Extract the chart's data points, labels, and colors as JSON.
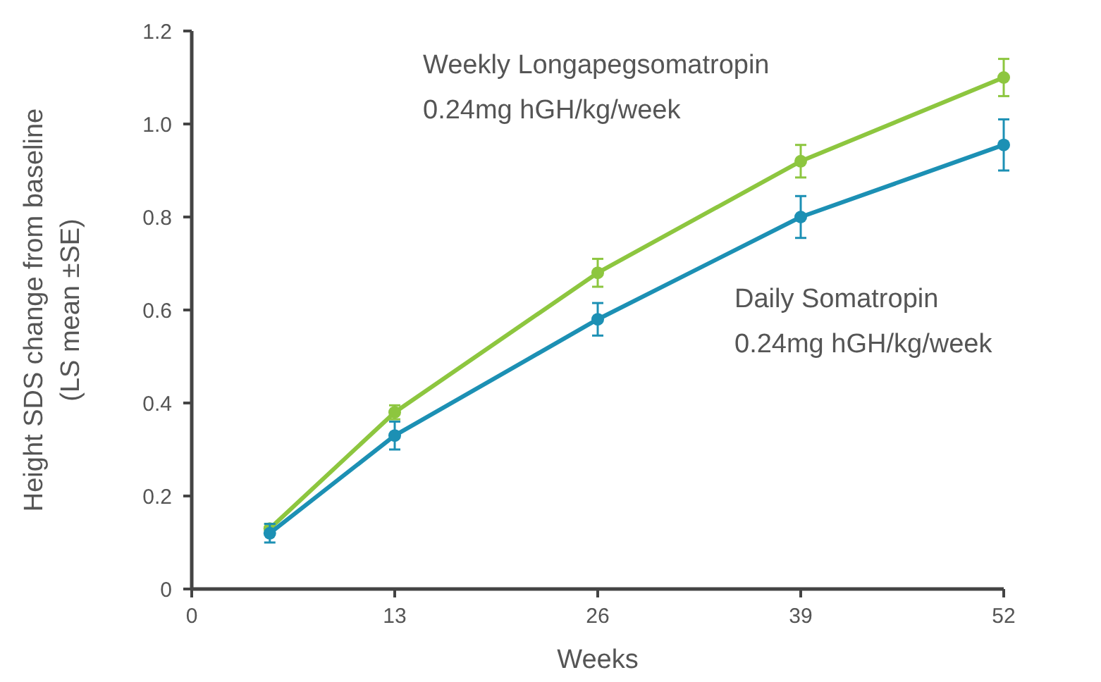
{
  "chart_data": {
    "type": "line",
    "xlabel": "Weeks",
    "ylabel": "Height SDS change from baseline\n(LS mean ±SE)",
    "x": [
      5,
      13,
      26,
      39,
      52
    ],
    "xlim": [
      0,
      52
    ],
    "xticks": [
      0,
      13,
      26,
      39,
      52
    ],
    "ylim": [
      0,
      1.2
    ],
    "yticks": [
      0,
      0.2,
      0.4,
      0.6,
      0.8,
      {
        "value": 1,
        "label": "1.0"
      },
      1.2
    ],
    "marker": "circle",
    "line_style": "solid",
    "grid": false,
    "series": [
      {
        "name": "Weekly Longapegsomatropin\n0.24mg hGH/kg/week",
        "color": "#8dc63f",
        "values": [
          0.13,
          0.38,
          0.68,
          0.92,
          1.1
        ],
        "errors": [
          0.01,
          0.015,
          0.03,
          0.035,
          0.04
        ]
      },
      {
        "name": "Daily Somatropin\n0.24mg hGH/kg/week",
        "color": "#1c90b4",
        "values": [
          0.12,
          0.33,
          0.58,
          0.8,
          0.955
        ],
        "errors": [
          0.02,
          0.03,
          0.035,
          0.045,
          0.055
        ]
      }
    ]
  }
}
